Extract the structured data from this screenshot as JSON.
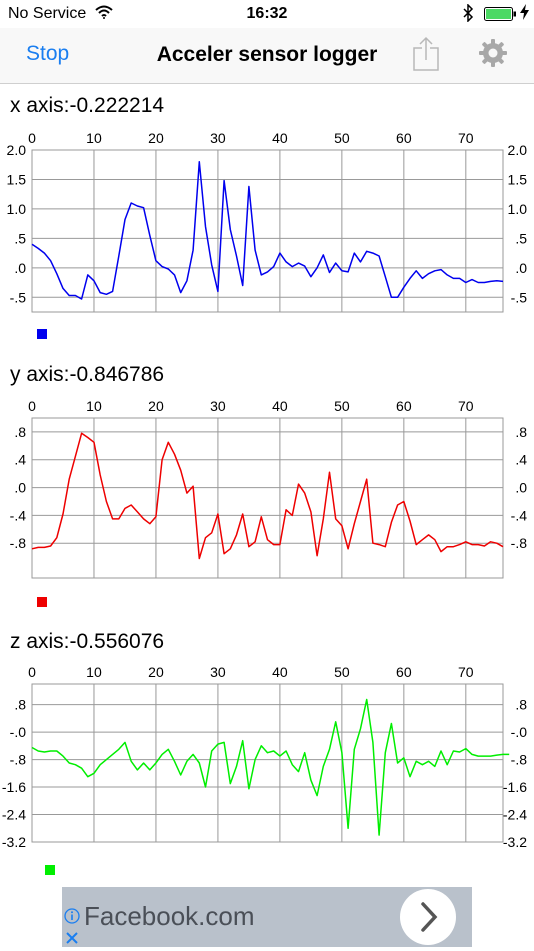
{
  "status_bar": {
    "carrier": "No Service",
    "time": "16:32"
  },
  "nav": {
    "stop_label": "Stop",
    "title": "Acceler sensor logger"
  },
  "colors": {
    "accent": "#1a7ef0",
    "x_series": "#0000ee",
    "y_series": "#ee0000",
    "z_series": "#00ee00",
    "grid": "#999999"
  },
  "icons": [
    "wifi-icon",
    "bluetooth-icon",
    "battery-icon",
    "charging-icon",
    "share-icon",
    "gear-icon",
    "info-icon",
    "close-icon",
    "chevron-right-icon"
  ],
  "x_axis": {
    "label": "x axis:-0.222214"
  },
  "y_axis": {
    "label": "y axis:-0.846786"
  },
  "z_axis": {
    "label": "z axis:-0.556076"
  },
  "ad": {
    "text": "Facebook.com"
  },
  "chart_data": [
    {
      "type": "line",
      "xlim": [
        0,
        76
      ],
      "ylim": [
        -0.75,
        2.0
      ],
      "x_ticks": [
        0,
        10,
        20,
        30,
        40,
        50,
        60,
        70
      ],
      "y_ticks": [
        {
          "value": 2.0,
          "label": "2.0"
        },
        {
          "value": 1.5,
          "label": "1.5"
        },
        {
          "value": 1.0,
          "label": "1.0"
        },
        {
          "value": 0.5,
          "label": ".5"
        },
        {
          "value": 0.0,
          "label": ".0"
        },
        {
          "value": -0.5,
          "label": "-.5"
        }
      ],
      "grid": true,
      "series": [
        {
          "color": "#0000ee",
          "values": [
            0.4,
            0.33,
            0.25,
            0.12,
            -0.1,
            -0.35,
            -0.47,
            -0.47,
            -0.53,
            -0.12,
            -0.22,
            -0.42,
            -0.45,
            -0.4,
            0.2,
            0.82,
            1.1,
            1.05,
            1.02,
            0.55,
            0.12,
            0.02,
            -0.02,
            -0.12,
            -0.42,
            -0.22,
            0.3,
            1.8,
            0.7,
            0.05,
            -0.4,
            1.48,
            0.65,
            0.2,
            -0.3,
            1.38,
            0.3,
            -0.12,
            -0.07,
            0.02,
            0.25,
            0.1,
            0.02,
            0.08,
            0.03,
            -0.15,
            0.0,
            0.22,
            -0.08,
            0.08,
            -0.05,
            -0.07,
            0.25,
            0.1,
            0.28,
            0.25,
            0.2,
            -0.15,
            -0.5,
            -0.5,
            -0.33,
            -0.18,
            -0.05,
            -0.18,
            -0.1,
            -0.05,
            -0.03,
            -0.12,
            -0.18,
            -0.18,
            -0.25,
            -0.2,
            -0.25,
            -0.25,
            -0.23,
            -0.22,
            -0.23
          ]
        }
      ]
    },
    {
      "type": "line",
      "xlim": [
        0,
        76
      ],
      "ylim": [
        -1.3,
        1.0
      ],
      "x_ticks": [
        0,
        10,
        20,
        30,
        40,
        50,
        60,
        70
      ],
      "y_ticks": [
        {
          "value": 0.8,
          "label": ".8"
        },
        {
          "value": 0.4,
          "label": ".4"
        },
        {
          "value": 0.0,
          "label": ".0"
        },
        {
          "value": -0.4,
          "label": "-.4"
        },
        {
          "value": -0.8,
          "label": "-.8"
        }
      ],
      "grid": true,
      "series": [
        {
          "color": "#ee0000",
          "values": [
            -0.88,
            -0.86,
            -0.86,
            -0.84,
            -0.72,
            -0.38,
            0.12,
            0.45,
            0.78,
            0.72,
            0.65,
            0.18,
            -0.2,
            -0.45,
            -0.45,
            -0.3,
            -0.25,
            -0.35,
            -0.45,
            -0.52,
            -0.42,
            0.4,
            0.65,
            0.48,
            0.25,
            -0.08,
            0.02,
            -1.02,
            -0.72,
            -0.65,
            -0.38,
            -0.95,
            -0.88,
            -0.68,
            -0.38,
            -0.85,
            -0.78,
            -0.42,
            -0.75,
            -0.82,
            -0.82,
            -0.32,
            -0.4,
            0.05,
            -0.08,
            -0.35,
            -0.98,
            -0.45,
            0.22,
            -0.45,
            -0.55,
            -0.88,
            -0.52,
            -0.2,
            0.12,
            -0.8,
            -0.82,
            -0.85,
            -0.5,
            -0.25,
            -0.2,
            -0.48,
            -0.82,
            -0.75,
            -0.68,
            -0.75,
            -0.92,
            -0.85,
            -0.85,
            -0.82,
            -0.78,
            -0.82,
            -0.82,
            -0.84,
            -0.78,
            -0.8,
            -0.85
          ]
        }
      ]
    },
    {
      "type": "line",
      "xlim": [
        0,
        76
      ],
      "ylim": [
        -3.2,
        1.4
      ],
      "x_ticks": [
        0,
        10,
        20,
        30,
        40,
        50,
        60,
        70
      ],
      "y_ticks": [
        {
          "value": 0.8,
          "label": ".8"
        },
        {
          "value": 0.0,
          "label": "-.0"
        },
        {
          "value": -0.8,
          "label": "-.8"
        },
        {
          "value": -1.6,
          "label": "-1.6"
        },
        {
          "value": -2.4,
          "label": "-2.4"
        },
        {
          "value": -3.2,
          "label": "-3.2"
        }
      ],
      "grid": true,
      "series": [
        {
          "color": "#00ee00",
          "values": [
            -0.45,
            -0.55,
            -0.58,
            -0.55,
            -0.55,
            -0.7,
            -0.9,
            -0.95,
            -1.05,
            -1.3,
            -1.2,
            -0.95,
            -0.8,
            -0.65,
            -0.5,
            -0.3,
            -0.85,
            -1.1,
            -0.9,
            -1.1,
            -0.9,
            -0.65,
            -0.5,
            -0.85,
            -1.25,
            -0.85,
            -0.65,
            -0.9,
            -1.6,
            -0.55,
            -0.35,
            -0.3,
            -1.5,
            -1.0,
            -0.25,
            -1.65,
            -0.8,
            -0.4,
            -0.6,
            -0.55,
            -0.7,
            -0.55,
            -0.95,
            -1.15,
            -0.6,
            -1.4,
            -1.85,
            -1.0,
            -0.5,
            0.3,
            -0.6,
            -2.8,
            -0.5,
            0.1,
            0.95,
            -0.3,
            -3.0,
            -0.6,
            0.25,
            -0.9,
            -0.75,
            -1.3,
            -0.85,
            -0.95,
            -0.85,
            -1.0,
            -0.55,
            -0.95,
            -0.55,
            -0.58,
            -0.48,
            -0.65,
            -0.7,
            -0.7,
            -0.7,
            -0.67,
            -0.65,
            -0.65
          ]
        }
      ]
    }
  ]
}
